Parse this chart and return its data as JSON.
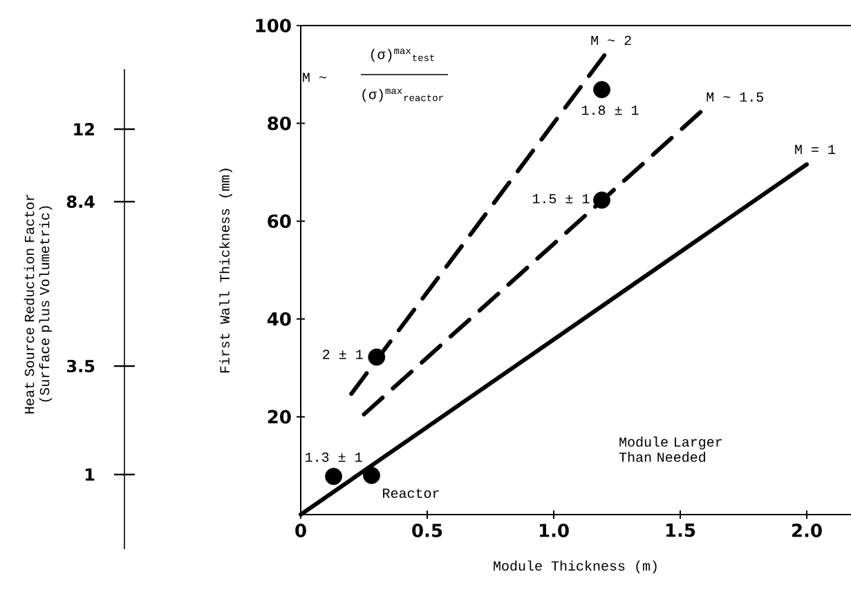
{
  "chart_data": {
    "type": "line",
    "xlabel": "Module Thickness (m)",
    "ylabel": "First Wall Thickness (mm)",
    "xlim": [
      0,
      2.175
    ],
    "ylim": [
      0,
      100
    ],
    "xticks": [
      0,
      {
        "value": 0.5,
        "label": "0.5"
      },
      {
        "value": 1,
        "label": "1.0"
      },
      {
        "value": 1.5,
        "label": "1.5"
      },
      {
        "value": 2,
        "label": "2.0"
      }
    ],
    "yticks": [
      20,
      40,
      60,
      80,
      100
    ],
    "series": [
      {
        "name": "M ~ 2",
        "line_style": "dashed",
        "color": "#000000",
        "x": [
          0.2,
          1.2
        ],
        "values": [
          24.7,
          93.9
        ]
      },
      {
        "name": "M ~ 1.5",
        "line_style": "dashed",
        "color": "#000000",
        "x": [
          0.25,
          1.58
        ],
        "values": [
          20.5,
          82.3
        ]
      },
      {
        "name": "M = 1",
        "line_style": "solid",
        "color": "#000000",
        "x": [
          0,
          2.0
        ],
        "values": [
          0,
          71.6
        ]
      },
      {
        "type": "scatter",
        "marker": "circle",
        "color": "#000000",
        "x": [
          0.13,
          0.28,
          0.3,
          1.19,
          1.19
        ],
        "values": [
          7.8,
          8.0,
          32.2,
          64.3,
          86.9
        ]
      }
    ],
    "annotations": [
      {
        "text": "1.3 ± 1",
        "x": 0.13,
        "y": 7.8
      },
      {
        "text": "Reactor",
        "x": 0.28,
        "y": 8.0
      },
      {
        "text": "2 ± 1",
        "x": 0.3,
        "y": 32.2
      },
      {
        "text": "1.5 ± 1",
        "x": 1.19,
        "y": 64.3
      },
      {
        "text": "1.8 ± 1",
        "x": 1.19,
        "y": 86.9
      },
      "M ~",
      "(σ)$^{max}$$_{test}$",
      "(σ)$^{max}$$_{reactor}$",
      "Module Larger Than Needed",
      "Heat Source Reduction Factor (Surface plus Volumetric)",
      "12",
      "8.4",
      "3.5",
      "1"
    ],
    "grid": false
  }
}
